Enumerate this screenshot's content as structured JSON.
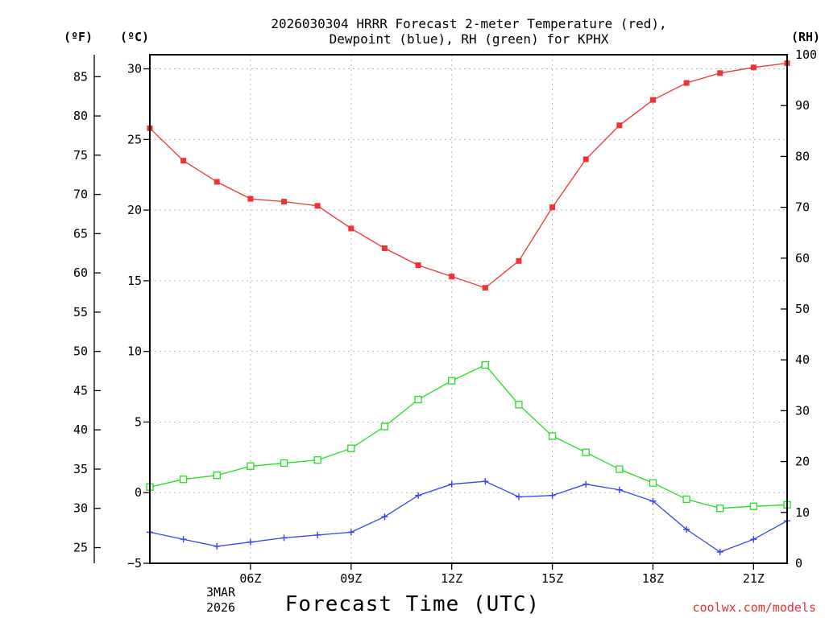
{
  "chart_data": {
    "type": "line",
    "title_lines": [
      "2026030304 HRRR Forecast 2-meter Temperature (red),",
      "Dewpoint (blue), RH (green) for KPHX"
    ],
    "xlabel": "Forecast Time (UTC)",
    "date_label_lines": [
      "3MAR",
      "2026"
    ],
    "credit": "coolwx.com/models",
    "units": {
      "fahrenheit": "(ºF)",
      "celsius": "(ºC)",
      "rh": "(RH)"
    },
    "x_hours": [
      3,
      4,
      5,
      6,
      7,
      8,
      9,
      10,
      11,
      12,
      13,
      14,
      15,
      16,
      17,
      18,
      19,
      20,
      21,
      22
    ],
    "x_range": [
      3,
      22
    ],
    "x_ticks": [
      {
        "hour": 6,
        "label": "06Z"
      },
      {
        "hour": 9,
        "label": "09Z"
      },
      {
        "hour": 12,
        "label": "12Z"
      },
      {
        "hour": 15,
        "label": "15Z"
      },
      {
        "hour": 18,
        "label": "18Z"
      },
      {
        "hour": 21,
        "label": "21Z"
      }
    ],
    "y_celsius": {
      "range": [
        -5,
        31
      ],
      "ticks": [
        "−5",
        "0",
        "5",
        "10",
        "15",
        "20",
        "25",
        "30"
      ]
    },
    "y_rh": {
      "range": [
        0,
        100
      ],
      "ticks": [
        "0",
        "10",
        "20",
        "30",
        "40",
        "50",
        "60",
        "70",
        "80",
        "90",
        "100"
      ]
    },
    "y_fahrenheit": {
      "ticks": [
        "25",
        "30",
        "35",
        "40",
        "45",
        "50",
        "55",
        "60",
        "65",
        "70",
        "75",
        "80",
        "85"
      ]
    },
    "series": [
      {
        "name": "2-meter Temperature",
        "unit": "C",
        "axis": "celsius",
        "color": "#ee3333",
        "marker": "filled-square",
        "values": [
          25.8,
          23.5,
          22.0,
          20.8,
          20.6,
          20.3,
          18.7,
          17.3,
          16.1,
          15.3,
          14.5,
          16.4,
          20.2,
          23.6,
          26.0,
          27.8,
          29.0,
          29.7,
          30.1,
          30.4
        ]
      },
      {
        "name": "Dewpoint",
        "unit": "C",
        "axis": "celsius",
        "color": "#3344ee",
        "marker": "plus",
        "values": [
          -2.8,
          -3.3,
          -3.8,
          -3.5,
          -3.2,
          -3.0,
          -2.8,
          -1.7,
          -0.2,
          0.6,
          0.8,
          -0.3,
          -0.2,
          0.6,
          0.2,
          -0.6,
          -2.6,
          -4.2,
          -3.3,
          -2.0
        ]
      },
      {
        "name": "RH",
        "unit": "%",
        "axis": "rh",
        "color": "#22dd22",
        "marker": "open-square",
        "values": [
          15.0,
          16.5,
          17.3,
          19.1,
          19.7,
          20.3,
          22.6,
          26.9,
          32.2,
          35.9,
          39.0,
          31.2,
          25.0,
          21.8,
          18.5,
          15.8,
          12.6,
          10.8,
          11.2,
          11.5
        ]
      }
    ]
  }
}
